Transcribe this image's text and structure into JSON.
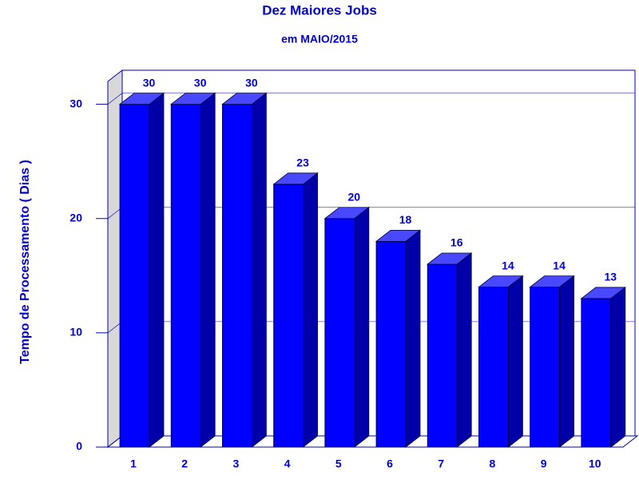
{
  "chart_data": {
    "type": "bar3d",
    "title": "Dez Maiores Jobs",
    "subtitle": "em MAIO/2015",
    "y_label": "Tempo de Processamento ( Dias )",
    "categories": [
      "1",
      "2",
      "3",
      "4",
      "5",
      "6",
      "7",
      "8",
      "9",
      "10"
    ],
    "values": [
      30,
      30,
      30,
      23,
      20,
      18,
      16,
      14,
      14,
      13
    ],
    "color": "#0000ff",
    "ylim": [
      0,
      32
    ],
    "yticks": [
      0,
      10,
      20,
      30
    ],
    "grid": true
  }
}
